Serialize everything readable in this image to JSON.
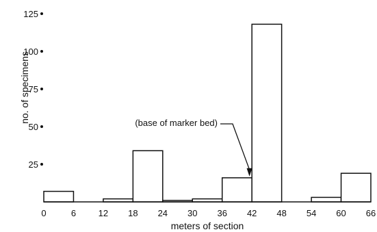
{
  "chart_data": {
    "type": "bar",
    "xlabel": "meters of section",
    "ylabel": "no. of specimens",
    "xlim": [
      0,
      66
    ],
    "ylim": [
      0,
      125
    ],
    "xticks": [
      0,
      6,
      12,
      18,
      24,
      30,
      36,
      42,
      48,
      54,
      60,
      66
    ],
    "xtick_labels": [
      "0",
      "6",
      "12",
      "18",
      "24",
      "30",
      "36",
      "42",
      "48",
      "54",
      "60",
      "66"
    ],
    "yticks": [
      25,
      50,
      75,
      100,
      125
    ],
    "ytick_labels": [
      "25",
      "50",
      "75",
      "100",
      "125"
    ],
    "grid": false,
    "bins": [
      {
        "x0": 0,
        "x1": 6,
        "value": 7
      },
      {
        "x0": 6,
        "x1": 12,
        "value": 0
      },
      {
        "x0": 12,
        "x1": 18,
        "value": 2
      },
      {
        "x0": 18,
        "x1": 24,
        "value": 34
      },
      {
        "x0": 24,
        "x1": 30,
        "value": 1
      },
      {
        "x0": 30,
        "x1": 36,
        "value": 2
      },
      {
        "x0": 36,
        "x1": 42,
        "value": 16
      },
      {
        "x0": 42,
        "x1": 48,
        "value": 118
      },
      {
        "x0": 48,
        "x1": 54,
        "value": 0
      },
      {
        "x0": 54,
        "x1": 60,
        "value": 3
      },
      {
        "x0": 60,
        "x1": 66,
        "value": 19
      }
    ],
    "annotations": [
      {
        "text": "(base of marker bed)",
        "x": 41.5,
        "y": 16
      }
    ]
  }
}
